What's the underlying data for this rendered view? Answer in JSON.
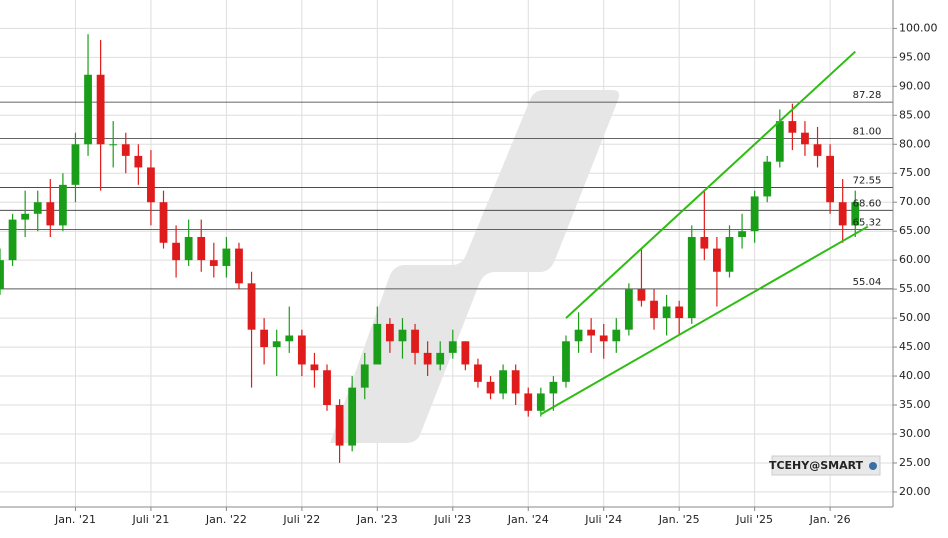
{
  "chart_data": {
    "type": "candlestick",
    "symbol_label": "TCEHY@SMART",
    "up_color": "#1a9e1a",
    "down_color": "#e01b1b",
    "grid": true,
    "level_color": "#333333",
    "trendline_color": "#2ebd12",
    "x": [
      "2020-07",
      "2020-08",
      "2020-09",
      "2020-10",
      "2020-11",
      "2020-12",
      "2021-01",
      "2021-02",
      "2021-03",
      "2021-04",
      "2021-05",
      "2021-06",
      "2021-07",
      "2021-08",
      "2021-09",
      "2021-10",
      "2021-11",
      "2021-12",
      "2022-01",
      "2022-02",
      "2022-03",
      "2022-04",
      "2022-05",
      "2022-06",
      "2022-07",
      "2022-08",
      "2022-09",
      "2022-10",
      "2022-11",
      "2022-12",
      "2023-01",
      "2023-02",
      "2023-03",
      "2023-04",
      "2023-05",
      "2023-06",
      "2023-07",
      "2023-08",
      "2023-09",
      "2023-10",
      "2023-11",
      "2023-12",
      "2024-01",
      "2024-02",
      "2024-03",
      "2024-04",
      "2024-05",
      "2024-06",
      "2024-07",
      "2024-08",
      "2024-09",
      "2024-10",
      "2024-11",
      "2024-12",
      "2025-01",
      "2025-02",
      "2025-03",
      "2025-04",
      "2025-05",
      "2025-06",
      "2025-07",
      "2025-08",
      "2025-09",
      "2025-10",
      "2025-11",
      "2025-12",
      "2026-01",
      "2026-02",
      "2026-03"
    ],
    "open": [
      55,
      60,
      67,
      68,
      70,
      66,
      73,
      80,
      92,
      80,
      80,
      78,
      76,
      70,
      63,
      60,
      64,
      60,
      59,
      62,
      56,
      48,
      45,
      46,
      47,
      42,
      41,
      35,
      28,
      38,
      42,
      49,
      46,
      48,
      44,
      42,
      44,
      46,
      42,
      39,
      37,
      41,
      37,
      34,
      37,
      39,
      46,
      48,
      47,
      46,
      48,
      55,
      53,
      50,
      52,
      50,
      64,
      62,
      58,
      64,
      65,
      71,
      77,
      84,
      82,
      80,
      78,
      70,
      66
    ],
    "high": [
      62,
      68,
      72,
      72,
      74,
      75,
      82,
      99,
      98,
      84,
      82,
      80,
      79,
      72,
      66,
      67,
      67,
      63,
      64,
      63,
      58,
      50,
      48,
      52,
      48,
      44,
      42,
      36,
      40,
      44,
      52,
      50,
      50,
      49,
      46,
      46,
      48,
      46,
      43,
      40,
      42,
      42,
      38,
      38,
      40,
      47,
      51,
      50,
      49,
      50,
      56,
      62,
      55,
      54,
      53,
      66,
      72,
      64,
      66,
      68,
      72,
      78,
      86,
      87,
      84,
      83,
      80,
      74,
      72
    ],
    "low": [
      54,
      59,
      64,
      65,
      64,
      65,
      70,
      78,
      72,
      76,
      75,
      73,
      66,
      62,
      57,
      59,
      58,
      57,
      57,
      55,
      38,
      42,
      40,
      44,
      40,
      38,
      34,
      25,
      27,
      36,
      42,
      44,
      43,
      42,
      40,
      41,
      43,
      41,
      38,
      36,
      36,
      35,
      33,
      33,
      34,
      38,
      44,
      44,
      43,
      44,
      47,
      52,
      48,
      47,
      47,
      49,
      60,
      52,
      57,
      62,
      63,
      70,
      76,
      79,
      78,
      76,
      68,
      63,
      64
    ],
    "close": [
      60,
      67,
      68,
      70,
      66,
      73,
      80,
      92,
      80,
      80,
      78,
      76,
      70,
      63,
      60,
      64,
      60,
      59,
      62,
      56,
      48,
      45,
      46,
      47,
      42,
      41,
      35,
      28,
      38,
      42,
      49,
      46,
      48,
      44,
      42,
      44,
      46,
      42,
      39,
      37,
      41,
      37,
      34,
      37,
      39,
      46,
      48,
      47,
      46,
      48,
      55,
      53,
      50,
      52,
      50,
      64,
      62,
      58,
      64,
      65,
      71,
      77,
      84,
      82,
      80,
      78,
      70,
      66,
      70
    ],
    "xlim": [
      "2020-07",
      "2026-06"
    ],
    "xticks": [
      {
        "value": "2021-01",
        "label": "Jan. '21"
      },
      {
        "value": "2021-07",
        "label": "Juli '21"
      },
      {
        "value": "2022-01",
        "label": "Jan. '22"
      },
      {
        "value": "2022-07",
        "label": "Juli '22"
      },
      {
        "value": "2023-01",
        "label": "Jan. '23"
      },
      {
        "value": "2023-07",
        "label": "Juli '23"
      },
      {
        "value": "2024-01",
        "label": "Jan. '24"
      },
      {
        "value": "2024-07",
        "label": "Juli '24"
      },
      {
        "value": "2025-01",
        "label": "Jan. '25"
      },
      {
        "value": "2025-07",
        "label": "Juli '25"
      },
      {
        "value": "2026-01",
        "label": "Jan. '26"
      }
    ],
    "ylim": [
      17.4,
      104.9
    ],
    "yticks": [
      {
        "value": 20,
        "label": "20.00"
      },
      {
        "value": 25,
        "label": "25.00"
      },
      {
        "value": 30,
        "label": "30.00"
      },
      {
        "value": 35,
        "label": "35.00"
      },
      {
        "value": 40,
        "label": "40.00"
      },
      {
        "value": 45,
        "label": "45.00"
      },
      {
        "value": 50,
        "label": "50.00"
      },
      {
        "value": 55,
        "label": "55.00"
      },
      {
        "value": 60,
        "label": "60.00"
      },
      {
        "value": 65,
        "label": "65.00"
      },
      {
        "value": 70,
        "label": "70.00"
      },
      {
        "value": 75,
        "label": "75.00"
      },
      {
        "value": 80,
        "label": "80.00"
      },
      {
        "value": 85,
        "label": "85.00"
      },
      {
        "value": 90,
        "label": "90.00"
      },
      {
        "value": 95,
        "label": "95.00"
      },
      {
        "value": 100,
        "label": "100.00"
      }
    ],
    "levels": [
      {
        "value": 87.28,
        "label": "87.28"
      },
      {
        "value": 81,
        "label": "81.00"
      },
      {
        "value": 72.55,
        "label": "72.55"
      },
      {
        "value": 68.6,
        "label": "68.60"
      },
      {
        "value": 65.32,
        "label": "65.32"
      },
      {
        "value": 55.04,
        "label": "55.04"
      }
    ],
    "trendlines": [
      {
        "x": [
          "2024-04",
          "2026-03"
        ],
        "y": [
          50,
          96
        ]
      },
      {
        "x": [
          "2024-02",
          "2026-04"
        ],
        "y": [
          33.4,
          65.8
        ]
      }
    ]
  }
}
